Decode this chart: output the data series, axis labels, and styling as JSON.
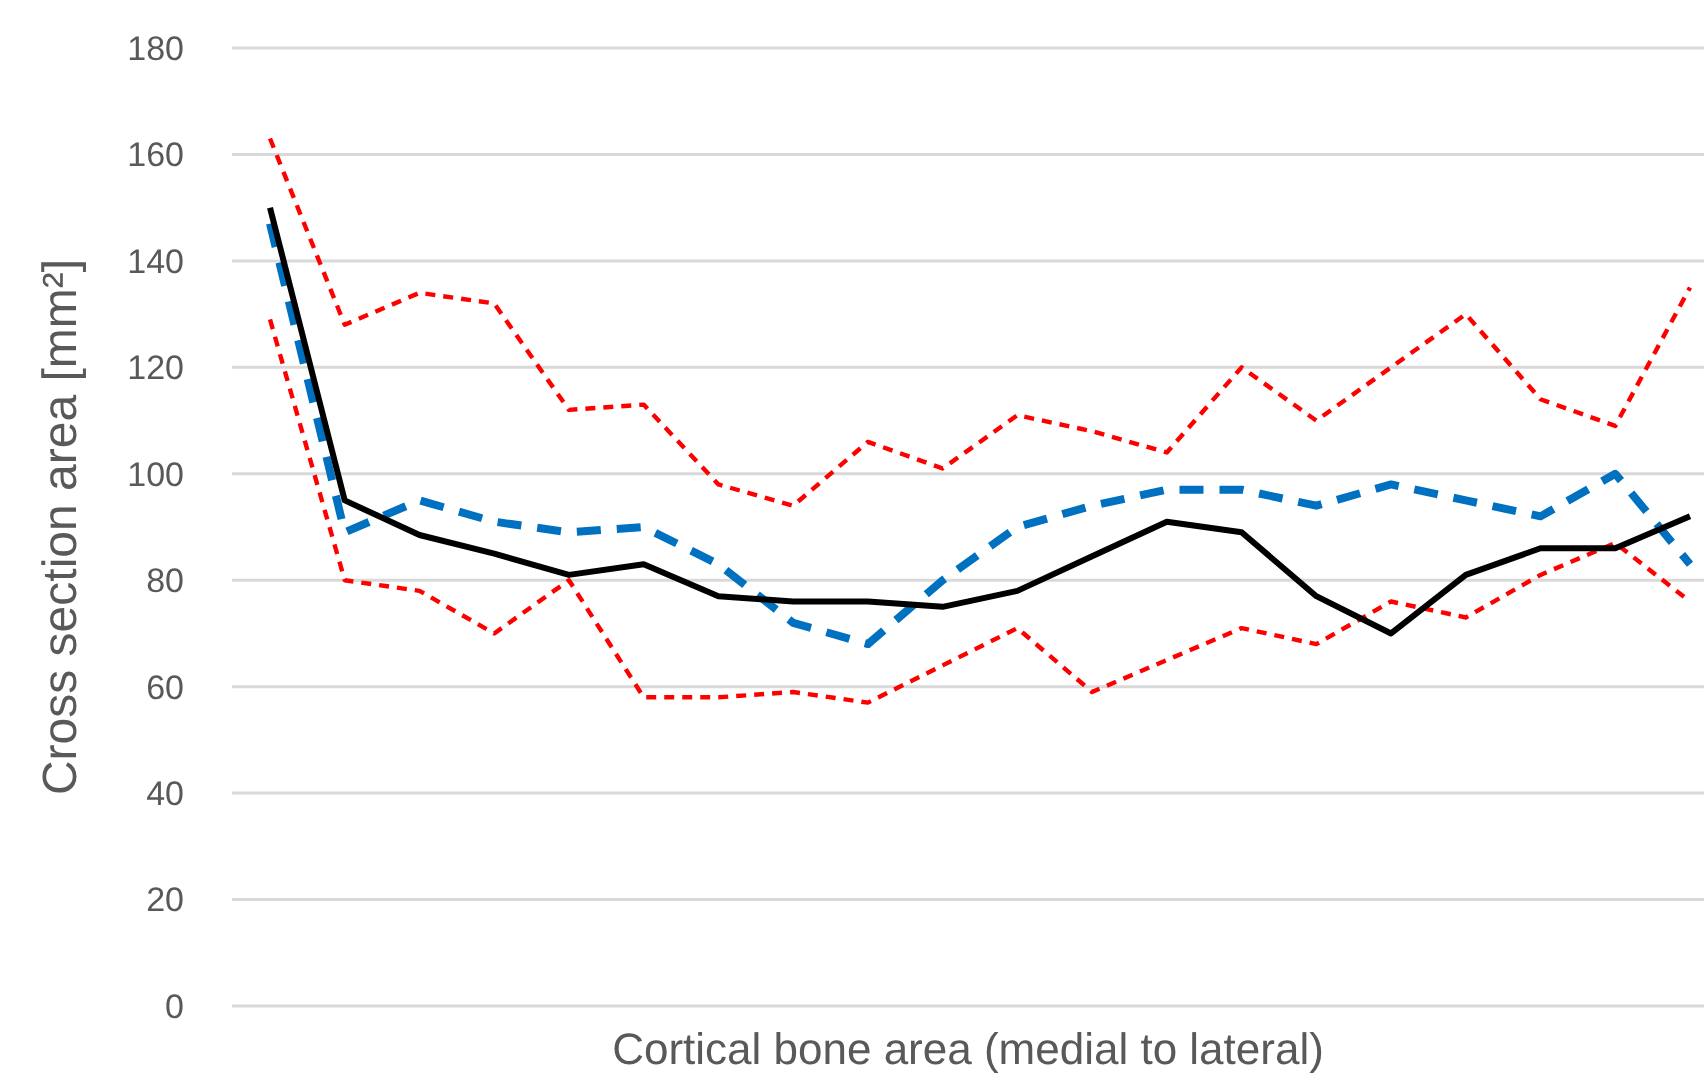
{
  "chart_data": {
    "type": "line",
    "xlabel": "Cortical bone area (medial to lateral)",
    "ylabel": "Cross section area [mm²]",
    "categories": [
      null,
      null,
      null,
      null,
      null,
      null,
      null,
      null,
      null,
      null,
      null,
      null,
      null,
      null,
      null,
      null,
      null,
      null,
      null,
      null
    ],
    "ylim": [
      0,
      180
    ],
    "yticks": [
      0,
      20,
      40,
      60,
      80,
      100,
      120,
      140,
      160,
      180
    ],
    "grid": "y",
    "marker": "none",
    "series": [
      {
        "color": "#ff0000",
        "line_style": "dotted",
        "values": [
          163,
          128,
          134,
          132,
          112,
          113,
          98,
          94,
          106,
          101,
          111,
          108,
          104,
          120,
          110,
          120,
          130,
          114,
          109,
          135
        ]
      },
      {
        "color": "#ff0000",
        "line_style": "dotted",
        "values": [
          129,
          80,
          78,
          70,
          80,
          58,
          58,
          59,
          57,
          64,
          71,
          59,
          65,
          71,
          68,
          76,
          73,
          81,
          87,
          76
        ]
      },
      {
        "color": "#0070c0",
        "line_style": "dashed",
        "values": [
          147,
          89,
          95,
          91,
          89,
          90,
          83,
          72,
          68,
          80,
          90,
          94,
          97,
          97,
          94,
          98,
          95,
          92,
          100,
          83
        ]
      },
      {
        "color": "#000000",
        "line_style": "solid",
        "values": [
          150,
          95,
          88.5,
          85,
          81,
          83,
          77,
          76,
          76,
          75,
          78,
          84.5,
          91,
          89,
          77,
          70,
          81,
          86,
          86,
          92
        ]
      }
    ]
  }
}
